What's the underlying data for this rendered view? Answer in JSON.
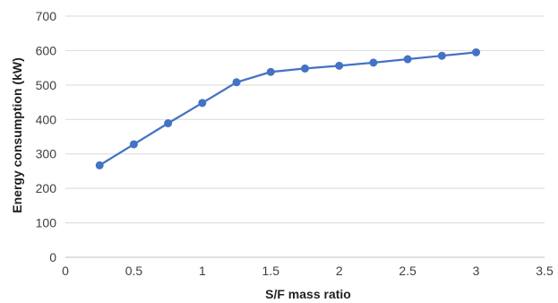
{
  "chart_data": {
    "type": "line",
    "title": "",
    "xlabel": "S/F mass ratio",
    "ylabel": "Energy consumption (kW)",
    "xlim": [
      0,
      3.5
    ],
    "ylim": [
      0,
      700
    ],
    "x_ticks": [
      "0",
      "0.5",
      "1",
      "1.5",
      "2",
      "2.5",
      "3",
      "3.5"
    ],
    "y_ticks": [
      "0",
      "100",
      "200",
      "300",
      "400",
      "500",
      "600",
      "700"
    ],
    "grid": "horizontal",
    "legend": "none",
    "series": [
      {
        "color": "#4472c4",
        "x": [
          0.25,
          0.5,
          0.75,
          1.0,
          1.25,
          1.5,
          1.75,
          2.0,
          2.25,
          2.5,
          2.75,
          3.0
        ],
        "y": [
          267,
          328,
          389,
          448,
          508,
          538,
          548,
          556,
          565,
          575,
          585,
          595
        ]
      }
    ]
  }
}
